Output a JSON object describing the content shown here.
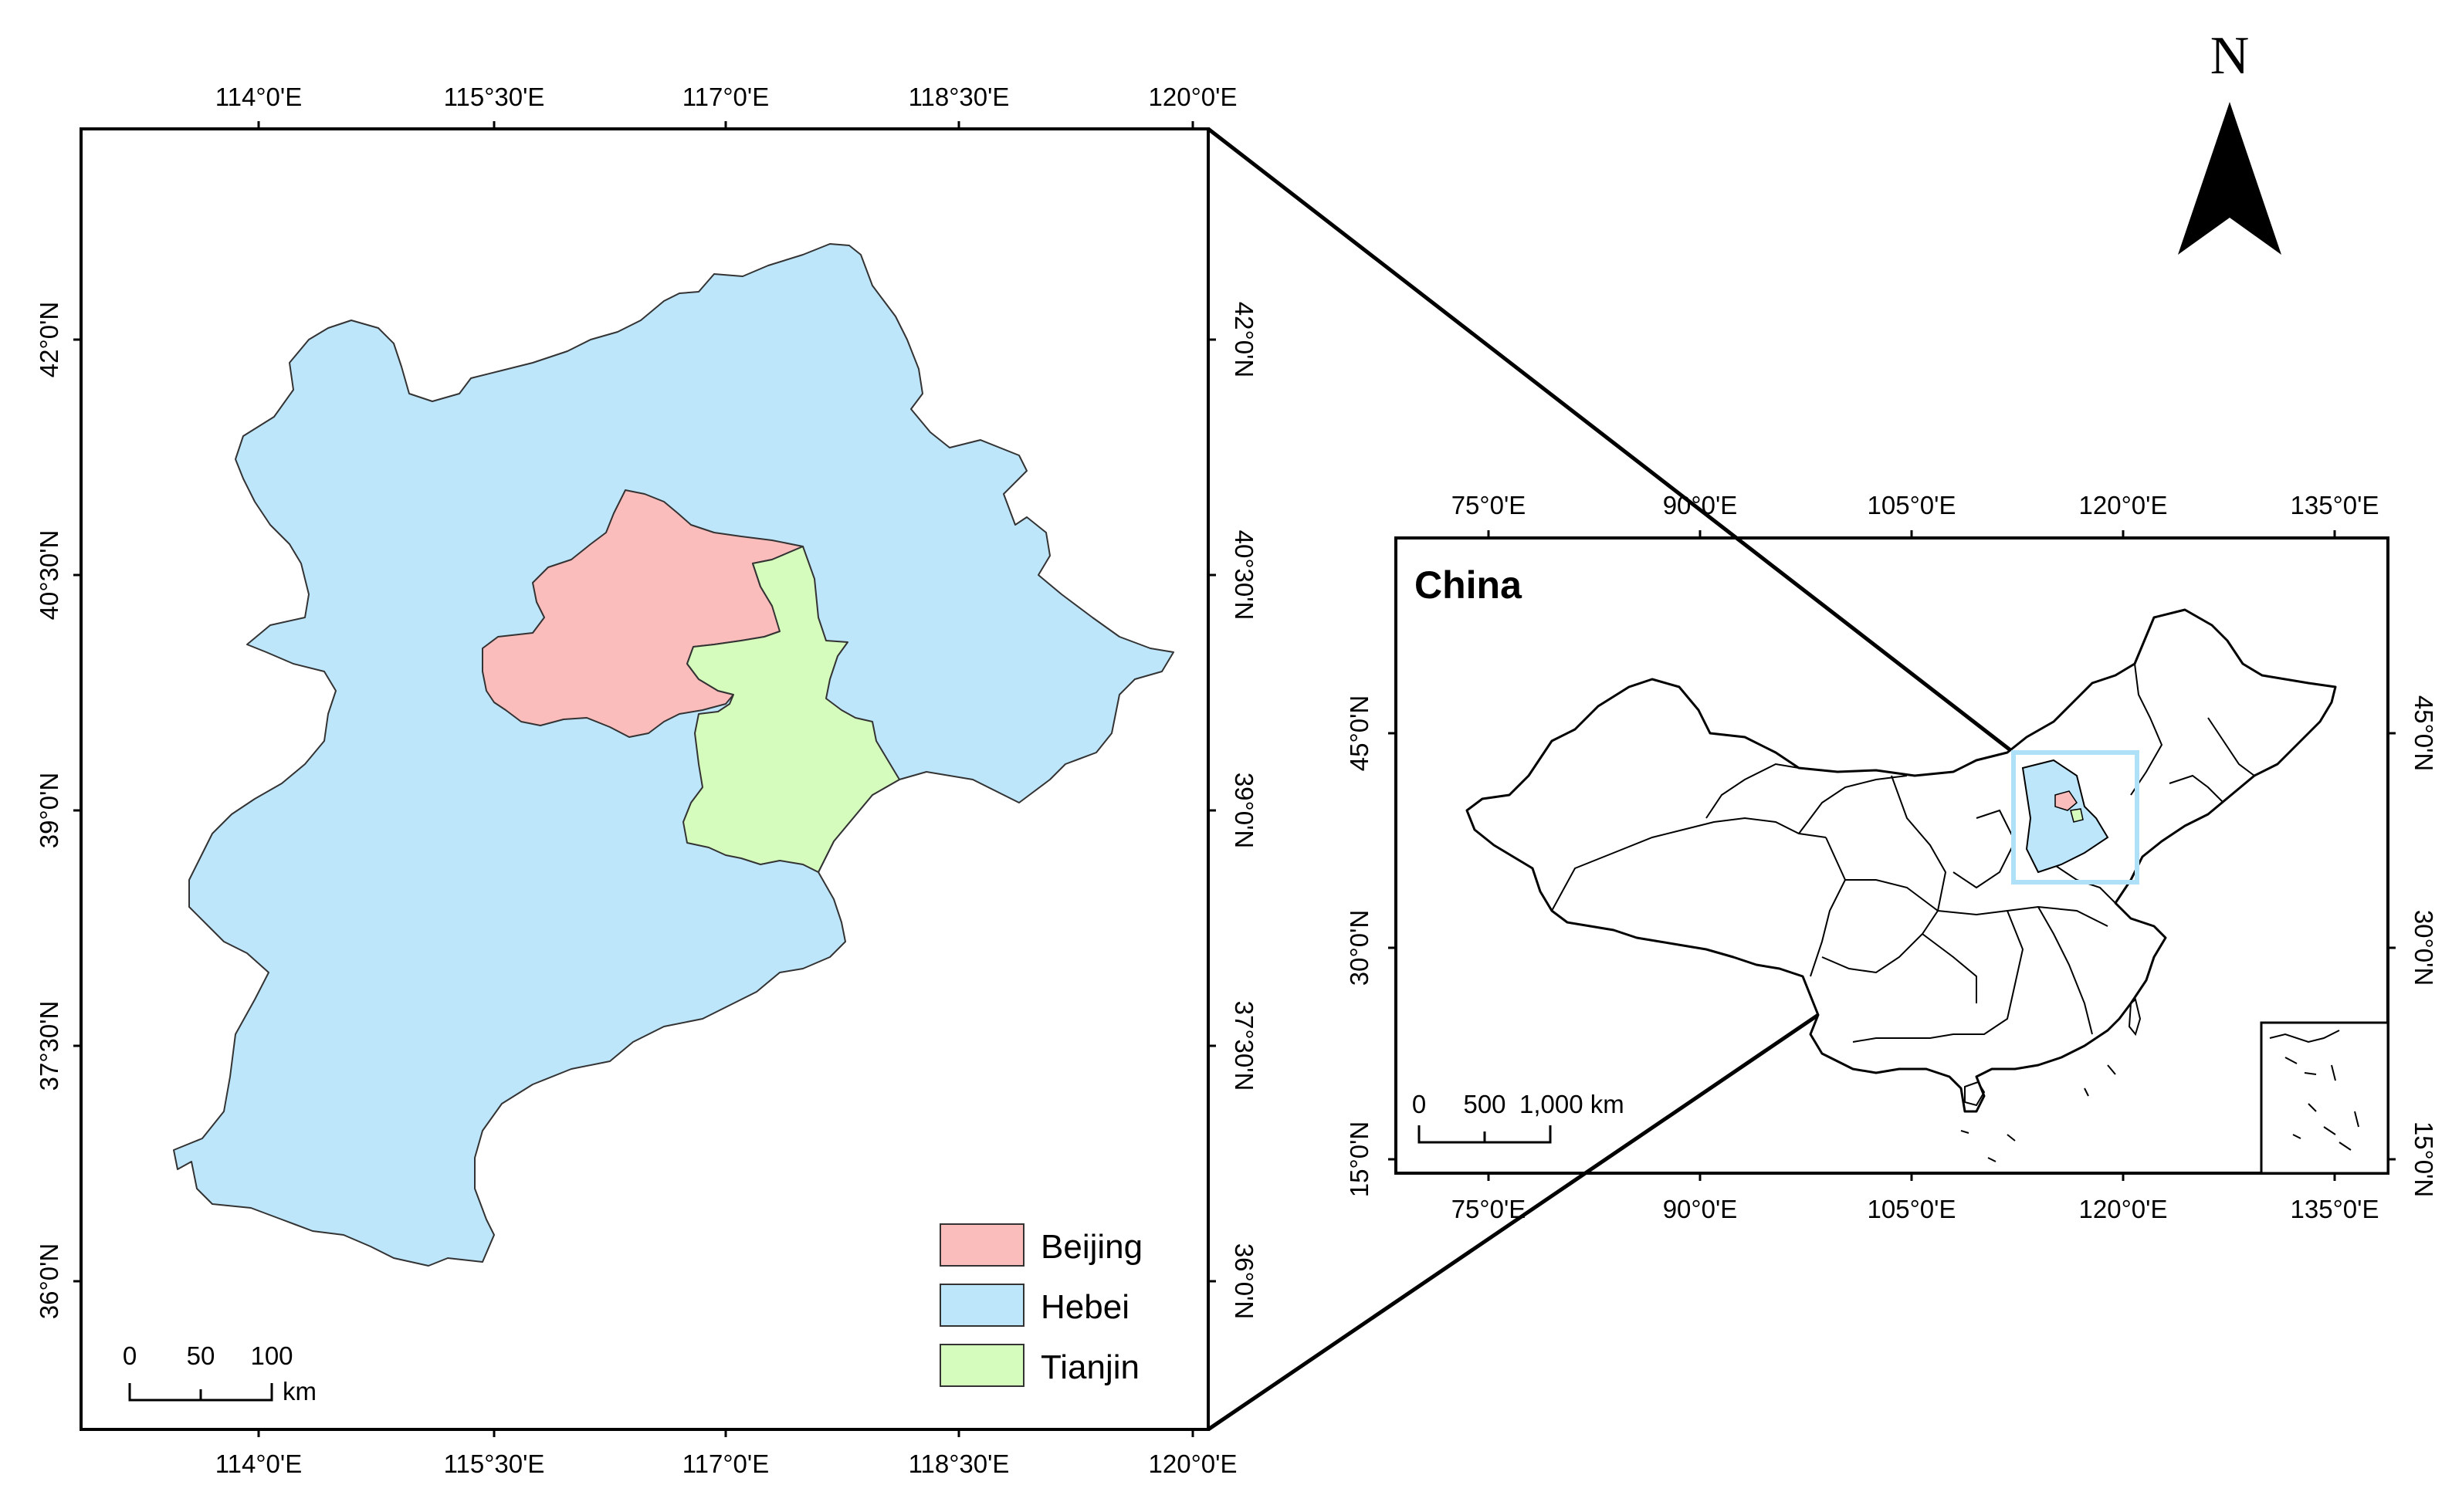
{
  "detail_map": {
    "top_lon_labels": [
      "114°0'E",
      "115°30'E",
      "117°0'E",
      "118°30'E",
      "120°0'E"
    ],
    "bottom_lon_labels": [
      "114°0'E",
      "115°30'E",
      "117°0'E",
      "118°30'E",
      "120°0'E"
    ],
    "left_lat_labels": [
      "42°0'N",
      "40°30'N",
      "39°0'N",
      "37°30'N",
      "36°0'N"
    ],
    "right_lat_labels": [
      "42°0'N",
      "40°30'N",
      "39°0'N",
      "37°30'N",
      "36°0'N"
    ],
    "legend": [
      {
        "label": "Beijing",
        "color": "#fbbcbc"
      },
      {
        "label": "Hebei",
        "color": "#bee6fb"
      },
      {
        "label": "Tianjin",
        "color": "#d5fbbd"
      }
    ],
    "scale_bar": {
      "ticks": [
        "0",
        "50",
        "100"
      ],
      "unit": "km"
    }
  },
  "overview_map": {
    "title": "China",
    "top_lon_labels": [
      "75°0'E",
      "90°0'E",
      "105°0'E",
      "120°0'E",
      "135°0'E"
    ],
    "bottom_lon_labels": [
      "75°0'E",
      "90°0'E",
      "105°0'E",
      "120°0'E",
      "135°0'E"
    ],
    "left_lat_labels": [
      "45°0'N",
      "30°0'N",
      "15°0'N"
    ],
    "right_lat_labels": [
      "45°0'N",
      "30°0'N",
      "15°0'N"
    ],
    "scale_bar": {
      "ticks": [
        "0",
        "500",
        "1,000 km"
      ]
    },
    "highlight_color": "#bee6fb"
  },
  "north_arrow": {
    "label": "N"
  }
}
